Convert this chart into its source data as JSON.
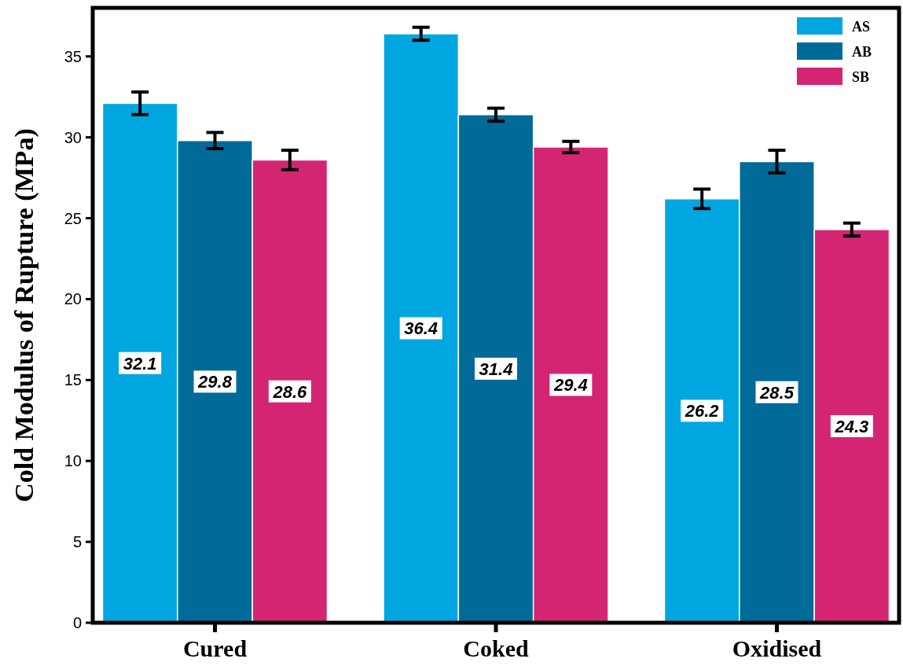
{
  "chart_data": {
    "type": "bar",
    "ylabel": "Cold Modulus of Rupture (MPa)",
    "categories": [
      "Cured",
      "Coked",
      "Oxidised"
    ],
    "series": [
      {
        "name": "AS",
        "color": "#00a6e0",
        "values": [
          32.1,
          36.4,
          26.2
        ],
        "errors": [
          0.7,
          0.4,
          0.6
        ]
      },
      {
        "name": "AB",
        "color": "#006a98",
        "values": [
          29.8,
          31.4,
          28.5
        ],
        "errors": [
          0.5,
          0.4,
          0.7
        ]
      },
      {
        "name": "SB",
        "color": "#d42572",
        "values": [
          28.6,
          29.4,
          24.3
        ],
        "errors": [
          0.6,
          0.35,
          0.4
        ]
      }
    ],
    "ylim": [
      0,
      38
    ],
    "yticks": [
      0,
      5,
      10,
      15,
      20,
      25,
      30,
      35
    ],
    "data_labels": true,
    "legend": "top right",
    "grid": false
  }
}
